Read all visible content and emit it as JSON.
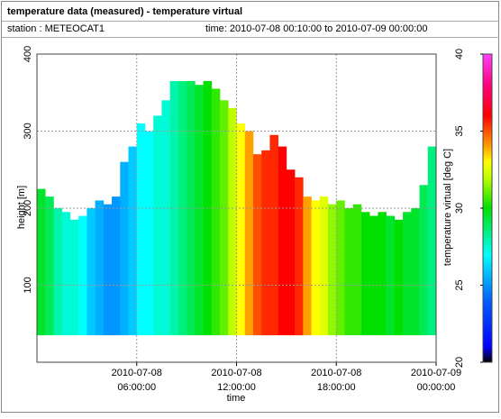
{
  "header": {
    "title": "temperature data (measured) - temperature virtual",
    "station": "station : METEOCAT1",
    "time": "time: 2010-07-08 00:10:00 to 2010-07-09 00:00:00"
  },
  "chart_data": {
    "type": "heatmap",
    "xlabel": "time",
    "ylabel": "height [m]",
    "colorbar_label": "temperature virtual [deg C]",
    "xlim": [
      0,
      24
    ],
    "ylim": [
      0,
      400
    ],
    "xticks": [
      {
        "value": 6,
        "label": "2010-07-08 06:00:00"
      },
      {
        "value": 12,
        "label": "2010-07-08 12:00:00"
      },
      {
        "value": 18,
        "label": "2010-07-08 18:00:00"
      },
      {
        "value": 24,
        "label": "2010-07-09 00:00:00"
      }
    ],
    "yticks": [
      100,
      200,
      300,
      400
    ],
    "clim": [
      20,
      40
    ],
    "cticks": [
      20,
      25,
      30,
      35,
      40
    ],
    "colormap": [
      {
        "value": 20,
        "color": "#000000"
      },
      {
        "value": 21,
        "color": "#0000ff"
      },
      {
        "value": 24,
        "color": "#0060ff"
      },
      {
        "value": 27,
        "color": "#00ffff"
      },
      {
        "value": 30,
        "color": "#00e000"
      },
      {
        "value": 32,
        "color": "#c0ff00"
      },
      {
        "value": 33,
        "color": "#ffff00"
      },
      {
        "value": 34,
        "color": "#ffa000"
      },
      {
        "value": 35,
        "color": "#ff5000"
      },
      {
        "value": 36,
        "color": "#ff0000"
      },
      {
        "value": 38,
        "color": "#ff0080"
      },
      {
        "value": 40,
        "color": "#ff40ff"
      }
    ],
    "grid": true,
    "bin_width": 0.5,
    "bottom_height": 35,
    "x": [
      0.25,
      0.75,
      1.25,
      1.75,
      2.25,
      2.75,
      3.25,
      3.75,
      4.25,
      4.75,
      5.25,
      5.75,
      6.25,
      6.75,
      7.25,
      7.75,
      8.25,
      8.75,
      9.25,
      9.75,
      10.25,
      10.75,
      11.25,
      11.75,
      12.25,
      12.75,
      13.25,
      13.75,
      14.25,
      14.75,
      15.25,
      15.75,
      16.25,
      16.75,
      17.25,
      17.75,
      18.25,
      18.75,
      19.25,
      19.75,
      20.25,
      20.75,
      21.25,
      21.75,
      22.25,
      22.75,
      23.25,
      23.75
    ],
    "temperature": [
      29.5,
      29,
      28,
      27.5,
      27.5,
      27,
      26,
      25.5,
      25,
      25,
      25.5,
      26,
      27,
      27,
      27.5,
      27.5,
      28,
      28.5,
      29,
      29.5,
      30,
      30.5,
      31,
      32,
      33,
      34,
      35,
      35.5,
      35.5,
      36,
      36,
      35.5,
      34,
      33,
      32.5,
      31.5,
      31,
      30.5,
      30.5,
      30,
      30,
      30,
      29.5,
      30,
      29.5,
      29.5,
      29,
      28.5
    ],
    "top_height": [
      225,
      215,
      200,
      195,
      185,
      190,
      200,
      210,
      205,
      215,
      260,
      280,
      310,
      300,
      320,
      340,
      365,
      365,
      365,
      360,
      365,
      355,
      340,
      330,
      310,
      300,
      270,
      275,
      295,
      280,
      250,
      240,
      215,
      210,
      215,
      205,
      210,
      200,
      205,
      195,
      190,
      195,
      190,
      185,
      195,
      200,
      230,
      280
    ]
  }
}
